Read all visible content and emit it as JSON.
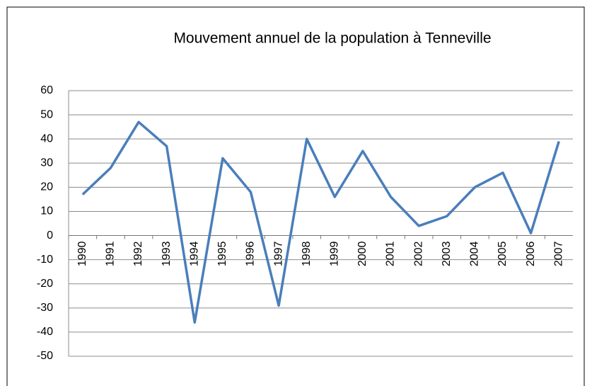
{
  "chart_data": {
    "type": "line",
    "title": "Mouvement annuel de la population à Tenneville",
    "categories": [
      "1990",
      "1991",
      "1992",
      "1993",
      "1994",
      "1995",
      "1996",
      "1997",
      "1998",
      "1999",
      "2000",
      "2001",
      "2002",
      "2003",
      "2004",
      "2005",
      "2006",
      "2007"
    ],
    "series": [
      {
        "name": "Mouvement annuel",
        "color": "#4a7ebb",
        "values": [
          17,
          28,
          47,
          37,
          -36,
          32,
          18,
          -29,
          40,
          16,
          35,
          16,
          4,
          8,
          20,
          26,
          1,
          39
        ]
      }
    ],
    "ylim": [
      -50,
      60
    ],
    "yticks": [
      -50,
      -40,
      -30,
      -20,
      -10,
      0,
      10,
      20,
      30,
      40,
      50,
      60
    ],
    "grid": true
  }
}
